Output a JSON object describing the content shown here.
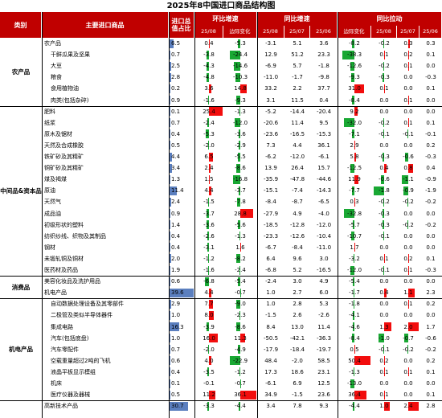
{
  "title": "2025年8中国进口商品结构图",
  "headers": {
    "category": "类别",
    "product": "主要进口商品",
    "share": "进口总值占比",
    "mom": "环比增速",
    "yoy": "同比增速",
    "yoy_change": "同比拉动"
  },
  "subheaders": [
    "25/08",
    "边际变化",
    "25/08",
    "25/07",
    "25/06",
    "边际变化",
    "25/08",
    "25/07",
    "25/06"
  ],
  "categories": [
    {
      "label": "农产品",
      "start": 0,
      "end": 6
    },
    {
      "label": "中间品&资本品",
      "start": 6,
      "end": 21
    },
    {
      "label": "消费品",
      "start": 21,
      "end": 23
    },
    {
      "label": "机电产品",
      "start": 23,
      "end": 32
    }
  ],
  "rows": [
    {
      "name": "农产品",
      "indent": 0,
      "share": "6.5",
      "mom": "0.4",
      "mom_chg": "-5.3",
      "yoy": "-3.1",
      "yoy7": "5.1",
      "yoy6": "3.6",
      "yoy_chg": "-8.2",
      "pull8": "-0.2",
      "pull7": "0.3",
      "pull6": "0.3"
    },
    {
      "name": "干鲜瓜果及坚果",
      "indent": 1,
      "share": "0.7",
      "mom": "-3.8",
      "mom_chg": "-24.4",
      "yoy": "12.9",
      "yoy7": "51.2",
      "yoy6": "23.3",
      "yoy_chg": "-38.3",
      "pull8": "0.1",
      "pull7": "0.2",
      "pull6": "0.1"
    },
    {
      "name": "大豆",
      "indent": 1,
      "share": "2.5",
      "mom": "-4.3",
      "mom_chg": "-14.6",
      "yoy": "-6.9",
      "yoy7": "5.7",
      "yoy6": "-1.8",
      "yoy_chg": "-12.6",
      "pull8": "-0.2",
      "pull7": "0.1",
      "pull6": "0.0"
    },
    {
      "name": "粮食",
      "indent": 1,
      "share": "2.8",
      "mom": "-4.8",
      "mom_chg": "-10.3",
      "yoy": "-11.0",
      "yoy7": "-1.7",
      "yoy6": "-9.8",
      "yoy_chg": "-9.3",
      "pull8": "-0.3",
      "pull7": "0.0",
      "pull6": "-0.3"
    },
    {
      "name": "食用植物油",
      "indent": 1,
      "share": "0.2",
      "mom": "3.6",
      "mom_chg": "14.8",
      "yoy": "33.2",
      "yoy7": "2.2",
      "yoy6": "37.7",
      "yoy_chg": "31.0",
      "pull8": "0.1",
      "pull7": "0.0",
      "pull6": "0.1"
    },
    {
      "name": "肉类(包括杂碎)",
      "indent": 1,
      "share": "0.9",
      "mom": "-1.6",
      "mom_chg": "-9.3",
      "yoy": "3.1",
      "yoy7": "11.5",
      "yoy6": "0.4",
      "yoy_chg": "-8.4",
      "pull8": "0.0",
      "pull7": "0.1",
      "pull6": "0.0"
    },
    {
      "name": "肥料",
      "indent": 0,
      "share": "0.1",
      "mom": "25.4",
      "mom_chg": "-1.3",
      "yoy": "-5.2",
      "yoy7": "-14.4",
      "yoy6": "-20.4",
      "yoy_chg": "9.2",
      "pull8": "0.0",
      "pull7": "0.0",
      "pull6": "0.0"
    },
    {
      "name": "纸浆",
      "indent": 0,
      "share": "0.7",
      "mom": "-2.4",
      "mom_chg": "-12.0",
      "yoy": "-20.6",
      "yoy7": "11.4",
      "yoy6": "9.5",
      "yoy_chg": "-32.0",
      "pull8": "-0.2",
      "pull7": "0.1",
      "pull6": "0.1"
    },
    {
      "name": "原木及锯材",
      "indent": 0,
      "share": "0.4",
      "mom": "-5.3",
      "mom_chg": "-3.6",
      "yoy": "-23.6",
      "yoy7": "-16.5",
      "yoy6": "-15.3",
      "yoy_chg": "-7.1",
      "pull8": "-0.1",
      "pull7": "-0.1",
      "pull6": "-0.1"
    },
    {
      "name": "天然及合成橡胶",
      "indent": 0,
      "share": "0.5",
      "mom": "-2.0",
      "mom_chg": "-2.9",
      "yoy": "7.3",
      "yoy7": "4.4",
      "yoy6": "36.1",
      "yoy_chg": "2.9",
      "pull8": "0.0",
      "pull7": "0.0",
      "pull6": "0.2"
    },
    {
      "name": "铁矿砂及其精矿",
      "indent": 0,
      "share": "4.4",
      "mom": "6.5",
      "mom_chg": "-5.5",
      "yoy": "-6.2",
      "yoy7": "-12.0",
      "yoy6": "-6.1",
      "yoy_chg": "5.8",
      "pull8": "-0.3",
      "pull7": "-0.6",
      "pull6": "-0.3"
    },
    {
      "name": "铜矿砂及其精矿",
      "indent": 0,
      "share": "3.4",
      "mom": "2.4",
      "mom_chg": "-8.6",
      "yoy": "13.9",
      "yoy7": "26.4",
      "yoy6": "15.7",
      "yoy_chg": "-12.5",
      "pull8": "0.4",
      "pull7": "0.8",
      "pull6": "0.4"
    },
    {
      "name": "煤及褐煤",
      "indent": 0,
      "share": "1.3",
      "mom": "1.5",
      "mom_chg": "-16.8",
      "yoy": "-35.9",
      "yoy7": "-47.8",
      "yoy6": "-44.6",
      "yoy_chg": "11.9",
      "pull8": "-0.6",
      "pull7": "-1.1",
      "pull6": "-0.9"
    },
    {
      "name": "原油",
      "indent": 0,
      "share": "11.4",
      "mom": "4.4",
      "mom_chg": "-3.7",
      "yoy": "-15.1",
      "yoy7": "-7.4",
      "yoy6": "-14.3",
      "yoy_chg": "-7.7",
      "pull8": "-1.8",
      "pull7": "-0.9",
      "pull6": "-1.9"
    },
    {
      "name": "天然气",
      "indent": 0,
      "share": "2.4",
      "mom": "-1.5",
      "mom_chg": "-7.8",
      "yoy": "-8.4",
      "yoy7": "-8.7",
      "yoy6": "-6.5",
      "yoy_chg": "0.3",
      "pull8": "-0.2",
      "pull7": "-0.2",
      "pull6": "-0.2"
    },
    {
      "name": "成品油",
      "indent": 0,
      "share": "0.9",
      "mom": "-3.7",
      "mom_chg": "28.8",
      "yoy": "-27.9",
      "yoy7": "4.9",
      "yoy6": "-4.0",
      "yoy_chg": "-32.8",
      "pull8": "-0.3",
      "pull7": "0.0",
      "pull6": "0.0"
    },
    {
      "name": "初级形状的塑料",
      "indent": 0,
      "share": "1.4",
      "mom": "-3.6",
      "mom_chg": "-5.6",
      "yoy": "-18.5",
      "yoy7": "-12.8",
      "yoy6": "-12.0",
      "yoy_chg": "-5.7",
      "pull8": "-0.3",
      "pull7": "-0.2",
      "pull6": "-0.2"
    },
    {
      "name": "纺织纱线、织物及其制品",
      "indent": 0,
      "share": "0.4",
      "mom": "-2.6",
      "mom_chg": "-1.3",
      "yoy": "-23.3",
      "yoy7": "-12.6",
      "yoy6": "-10.4",
      "yoy_chg": "-10.7",
      "pull8": "-0.1",
      "pull7": "0.0",
      "pull6": "0.0"
    },
    {
      "name": "钢材",
      "indent": 0,
      "share": "0.4",
      "mom": "-3.1",
      "mom_chg": "1.6",
      "yoy": "-6.7",
      "yoy7": "-8.4",
      "yoy6": "-11.0",
      "yoy_chg": "1.7",
      "pull8": "0.0",
      "pull7": "0.0",
      "pull6": "0.0"
    },
    {
      "name": "未锻轧铜及铜材",
      "indent": 0,
      "share": "2.0",
      "mom": "-1.2",
      "mom_chg": "-8.2",
      "yoy": "6.4",
      "yoy7": "9.6",
      "yoy6": "3.0",
      "yoy_chg": "-3.2",
      "pull8": "0.1",
      "pull7": "0.2",
      "pull6": "0.1"
    },
    {
      "name": "医药材及药品",
      "indent": 0,
      "share": "1.9",
      "mom": "-1.6",
      "mom_chg": "-2.4",
      "yoy": "-6.8",
      "yoy7": "5.2",
      "yoy6": "-16.5",
      "yoy_chg": "-12.0",
      "pull8": "-0.1",
      "pull7": "0.1",
      "pull6": "-0.3"
    },
    {
      "name": "美容化妆品及洗护用品",
      "indent": 0,
      "share": "0.6",
      "mom": "-6.8",
      "mom_chg": "-5.4",
      "yoy": "-2.4",
      "yoy7": "3.0",
      "yoy6": "4.9",
      "yoy_chg": "-5.4",
      "pull8": "0.0",
      "pull7": "0.0",
      "pull6": "0.0"
    },
    {
      "name": "机电产品",
      "indent": 0,
      "share": "39.6",
      "mom": "4.4",
      "mom_chg": "-0.7",
      "yoy": "1.0",
      "yoy7": "2.7",
      "yoy6": "6.0",
      "yoy_chg": "-1.7",
      "pull8": "0.4",
      "pull7": "1.1",
      "pull6": "2.3"
    },
    {
      "name": "自动数据处理设备及其零部件",
      "indent": 1,
      "share": "2.9",
      "mom": "7.7",
      "mom_chg": "-9.0",
      "yoy": "1.0",
      "yoy7": "2.8",
      "yoy6": "5.3",
      "yoy_chg": "-1.8",
      "pull8": "0.0",
      "pull7": "0.1",
      "pull6": "0.2"
    },
    {
      "name": "二极管及类似半导体器件",
      "indent": 1,
      "share": "1.0",
      "mom": "8.0",
      "mom_chg": "-2.3",
      "yoy": "-1.5",
      "yoy7": "2.6",
      "yoy6": "-2.6",
      "yoy_chg": "-4.1",
      "pull8": "0.0",
      "pull7": "0.0",
      "pull6": "0.0"
    },
    {
      "name": "集成电路",
      "indent": 1,
      "share": "16.3",
      "mom": "-3.9",
      "mom_chg": "-8.6",
      "yoy": "8.4",
      "yoy7": "13.0",
      "yoy6": "11.4",
      "yoy_chg": "-4.6",
      "pull8": "1.3",
      "pull7": "2.0",
      "pull6": "1.7"
    },
    {
      "name": "汽车(包括底盘)",
      "indent": 1,
      "share": "1.0",
      "mom": "16.0",
      "mom_chg": "11.3",
      "yoy": "-50.5",
      "yoy7": "-42.1",
      "yoy6": "-36.3",
      "yoy_chg": "-8.4",
      "pull8": "-1.0",
      "pull7": "-0.7",
      "pull6": "-0.6"
    },
    {
      "name": "汽车零配件",
      "indent": 1,
      "share": "0.7",
      "mom": "-2.0",
      "mom_chg": "-4.9",
      "yoy": "-17.9",
      "yoy7": "-18.4",
      "yoy6": "-19.7",
      "yoy_chg": "0.5",
      "pull8": "-0.1",
      "pull7": "-0.2",
      "pull6": "-0.2"
    },
    {
      "name": "空载重量超过2吨的飞机",
      "indent": 1,
      "share": "0.6",
      "mom": "4.0",
      "mom_chg": "-22.9",
      "yoy": "48.4",
      "yoy7": "-2.0",
      "yoy6": "58.5",
      "yoy_chg": "50.4",
      "pull8": "0.2",
      "pull7": "0.0",
      "pull6": "0.2"
    },
    {
      "name": "液晶平板显示模组",
      "indent": 1,
      "share": "0.4",
      "mom": "-3.5",
      "mom_chg": "-1.2",
      "yoy": "17.3",
      "yoy7": "18.6",
      "yoy6": "23.1",
      "yoy_chg": "-1.3",
      "pull8": "0.1",
      "pull7": "0.1",
      "pull6": "0.1"
    },
    {
      "name": "机床",
      "indent": 1,
      "share": "0.1",
      "mom": "-0.1",
      "mom_chg": "-0.7",
      "yoy": "-6.1",
      "yoy7": "6.9",
      "yoy6": "12.5",
      "yoy_chg": "-13.0",
      "pull8": "0.0",
      "pull7": "0.0",
      "pull6": "0.0"
    },
    {
      "name": "医疗仪器及器械",
      "indent": 1,
      "share": "0.5",
      "mom": "11.2",
      "mom_chg": "36.1",
      "yoy": "34.9",
      "yoy7": "-1.5",
      "yoy6": "23.6",
      "yoy_chg": "36.4",
      "pull8": "0.1",
      "pull7": "0.0",
      "pull6": "0.1"
    },
    {
      "name": "高新技术产品",
      "indent": 0,
      "share": "30.7",
      "mom": "-3.3",
      "mom_chg": "-4.4",
      "yoy": "3.4",
      "yoy7": "7.8",
      "yoy6": "9.3",
      "yoy_chg": "-4.4",
      "pull8": "1.0",
      "pull7": "2.4",
      "pull6": "2.8"
    }
  ],
  "colors": {
    "header": "#c00000",
    "up": "#f20d0d",
    "down": "#19a833",
    "share": "#5b7fbf"
  }
}
